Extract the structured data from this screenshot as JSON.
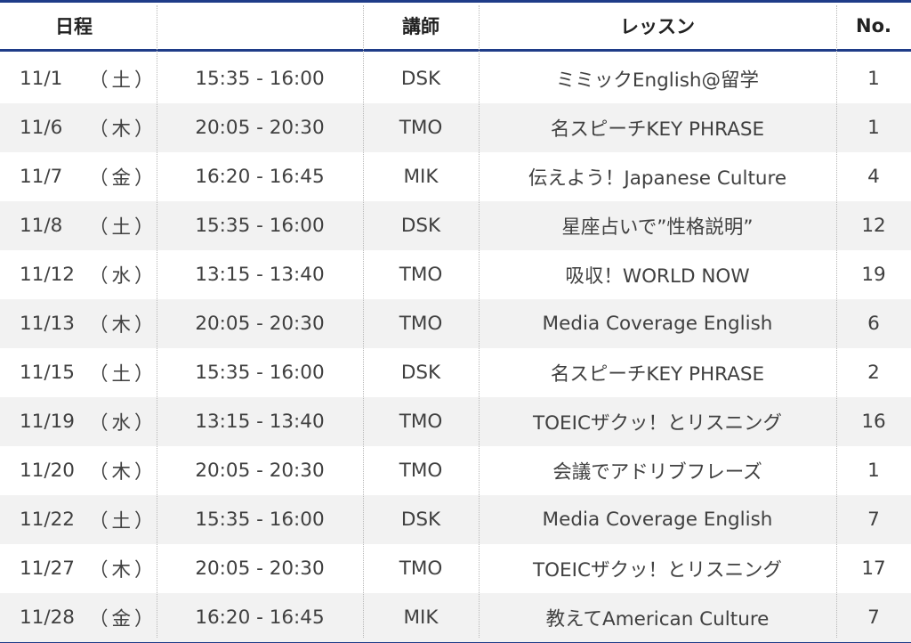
{
  "header": {
    "date": "日程",
    "teacher": "講師",
    "lesson": "レッスン",
    "no": "No."
  },
  "rows": [
    {
      "date": "11/1",
      "dow": "（土）",
      "time": "15:35 - 16:00",
      "teacher": "DSK",
      "lesson": "ミミックEnglish@留学",
      "no": "1"
    },
    {
      "date": "11/6",
      "dow": "（木）",
      "time": "20:05 - 20:30",
      "teacher": "TMO",
      "lesson": "名スピーチKEY PHRASE",
      "no": "1"
    },
    {
      "date": "11/7",
      "dow": "（金）",
      "time": "16:20 - 16:45",
      "teacher": "MIK",
      "lesson": "伝えよう！Japanese Culture",
      "no": "4"
    },
    {
      "date": "11/8",
      "dow": "（土）",
      "time": "15:35 - 16:00",
      "teacher": "DSK",
      "lesson": "星座占いで”性格説明”",
      "no": "12"
    },
    {
      "date": "11/12",
      "dow": "（水）",
      "time": "13:15 - 13:40",
      "teacher": "TMO",
      "lesson": "吸収！WORLD NOW",
      "no": "19"
    },
    {
      "date": "11/13",
      "dow": "（木）",
      "time": "20:05 - 20:30",
      "teacher": "TMO",
      "lesson": "Media Coverage English",
      "no": "6"
    },
    {
      "date": "11/15",
      "dow": "（土）",
      "time": "15:35 - 16:00",
      "teacher": "DSK",
      "lesson": "名スピーチKEY PHRASE",
      "no": "2"
    },
    {
      "date": "11/19",
      "dow": "（水）",
      "time": "13:15 - 13:40",
      "teacher": "TMO",
      "lesson": "TOEICザクッ！とリスニング",
      "no": "16"
    },
    {
      "date": "11/20",
      "dow": "（木）",
      "time": "20:05 - 20:30",
      "teacher": "TMO",
      "lesson": "会議でアドリブフレーズ",
      "no": "1"
    },
    {
      "date": "11/22",
      "dow": "（土）",
      "time": "15:35 - 16:00",
      "teacher": "DSK",
      "lesson": "Media Coverage English",
      "no": "7"
    },
    {
      "date": "11/27",
      "dow": "（木）",
      "time": "20:05 - 20:30",
      "teacher": "TMO",
      "lesson": "TOEICザクッ！とリスニング",
      "no": "17"
    },
    {
      "date": "11/28",
      "dow": "（金）",
      "time": "16:20 - 16:45",
      "teacher": "MIK",
      "lesson": "教えてAmerican Culture",
      "no": "7"
    }
  ]
}
